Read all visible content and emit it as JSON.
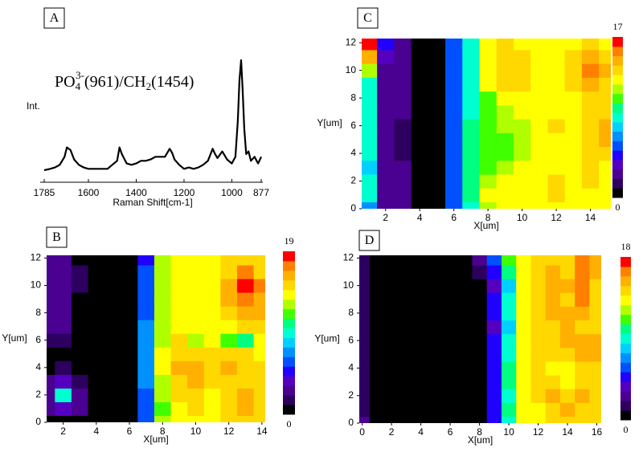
{
  "colormap": [
    "#000000",
    "#2d0060",
    "#4a0090",
    "#5500c0",
    "#2000ff",
    "#0050ff",
    "#0090ff",
    "#00d0ff",
    "#00ffd0",
    "#00ff80",
    "#40ff00",
    "#b0ff00",
    "#ffff00",
    "#ffd800",
    "#ffb000",
    "#ff8000",
    "#ff0000"
  ],
  "chart_data": [
    {
      "type": "line",
      "panel": "A",
      "annotation": [
        "PO",
        "4",
        "3-",
        "(961)/CH",
        "2",
        "(1454)"
      ],
      "xlabel": "Raman Shift[cm-1]",
      "ylabel": "Int.",
      "x": [
        1785,
        1760,
        1740,
        1720,
        1700,
        1690,
        1675,
        1660,
        1640,
        1620,
        1600,
        1580,
        1560,
        1540,
        1520,
        1500,
        1480,
        1470,
        1460,
        1440,
        1420,
        1400,
        1380,
        1360,
        1340,
        1320,
        1300,
        1280,
        1260,
        1250,
        1240,
        1220,
        1200,
        1180,
        1160,
        1140,
        1120,
        1100,
        1080,
        1070,
        1060,
        1040,
        1020,
        1000,
        985,
        975,
        968,
        961,
        955,
        948,
        940,
        930,
        920,
        905,
        890,
        877
      ],
      "values": [
        9,
        10,
        11,
        13,
        19,
        26,
        24,
        17,
        13,
        11,
        10,
        10,
        10,
        10,
        10,
        13,
        16,
        26,
        21,
        14,
        13,
        14,
        16,
        16,
        17,
        19,
        19,
        19,
        25,
        22,
        17,
        13,
        10,
        11,
        10,
        11,
        13,
        16,
        25,
        21,
        18,
        23,
        17,
        14,
        19,
        46,
        76,
        91,
        70,
        40,
        21,
        23,
        16,
        19,
        14,
        19
      ],
      "xlim": [
        1785,
        877
      ],
      "xticks": [
        1785,
        1600,
        1400,
        1200,
        1000,
        877
      ],
      "ylim": [
        0,
        100
      ],
      "color": "#000000"
    },
    {
      "type": "heatmap",
      "panel": "B",
      "xlabel": "X[um]",
      "ylabel": "Y[um]",
      "xlim": [
        1,
        14.2
      ],
      "xticks": [
        2,
        4,
        6,
        8,
        10,
        12,
        14
      ],
      "ylim": [
        0,
        12.2
      ],
      "yticks": [
        0,
        2,
        4,
        6,
        8,
        10,
        12
      ],
      "zlim": [
        0,
        19
      ],
      "x": [
        1,
        2,
        3,
        4,
        5,
        6,
        7,
        8,
        9,
        10,
        11,
        12,
        13,
        14
      ],
      "y": [
        0,
        1,
        2,
        3,
        4,
        5,
        6,
        7,
        8,
        9,
        10,
        11,
        12
      ],
      "z": [
        [
          0,
          0,
          0,
          0,
          0,
          0,
          6,
          13,
          14,
          14,
          14,
          15,
          16,
          15
        ],
        [
          2,
          4,
          2,
          0,
          0,
          0,
          6,
          12,
          14,
          15,
          14,
          15,
          17,
          15
        ],
        [
          2,
          9,
          2,
          0,
          0,
          0,
          6,
          13,
          15,
          15,
          14,
          15,
          17,
          16
        ],
        [
          2,
          4,
          1,
          0,
          0,
          0,
          7,
          13,
          16,
          17,
          15,
          16,
          16,
          15
        ],
        [
          0,
          1,
          0,
          0,
          0,
          0,
          7,
          14,
          17,
          17,
          16,
          17,
          16,
          15
        ],
        [
          0,
          0,
          0,
          0,
          0,
          0,
          7,
          14,
          16,
          16,
          15,
          16,
          15,
          14
        ],
        [
          1,
          1,
          0,
          0,
          0,
          0,
          7,
          13,
          16,
          13,
          14,
          12,
          11,
          14
        ],
        [
          2,
          2,
          0,
          0,
          0,
          0,
          7,
          13,
          14,
          14,
          14,
          14,
          16,
          16
        ],
        [
          2,
          2,
          0,
          0,
          0,
          0,
          6,
          13,
          14,
          14,
          14,
          15,
          17,
          17
        ],
        [
          2,
          2,
          0,
          0,
          0,
          0,
          6,
          13,
          14,
          14,
          14,
          17,
          18,
          17
        ],
        [
          2,
          2,
          1,
          0,
          0,
          0,
          6,
          13,
          14,
          14,
          14,
          17,
          19,
          18
        ],
        [
          2,
          2,
          1,
          0,
          0,
          0,
          6,
          13,
          14,
          14,
          14,
          16,
          18,
          16
        ],
        [
          2,
          2,
          0,
          0,
          0,
          0,
          5,
          13,
          14,
          14,
          14,
          15,
          16,
          15
        ]
      ]
    },
    {
      "type": "heatmap",
      "panel": "C",
      "xlabel": "X[um]",
      "ylabel": "Y[um]",
      "xlim": [
        0.6,
        15.2
      ],
      "xticks": [
        2,
        4,
        6,
        8,
        10,
        12,
        14
      ],
      "ylim": [
        0,
        12.3
      ],
      "yticks": [
        0,
        2,
        4,
        6,
        8,
        10,
        12
      ],
      "zlim": [
        0,
        17
      ],
      "x": [
        1,
        2,
        3,
        4,
        5,
        6,
        7,
        8,
        9,
        10,
        11,
        12,
        13,
        14,
        15
      ],
      "y": [
        0,
        1,
        2,
        3,
        4,
        5,
        6,
        7,
        8,
        9,
        10,
        11,
        12
      ],
      "z": [
        [
          6,
          2,
          2,
          0,
          0,
          5,
          9,
          12,
          13,
          13,
          13,
          13,
          13,
          13,
          13
        ],
        [
          8,
          2,
          2,
          0,
          0,
          5,
          10,
          13,
          13,
          13,
          13,
          14,
          13,
          13,
          13
        ],
        [
          8,
          2,
          2,
          0,
          0,
          5,
          10,
          12,
          13,
          13,
          13,
          14,
          13,
          14,
          13
        ],
        [
          7,
          2,
          2,
          0,
          0,
          5,
          10,
          11,
          12,
          13,
          13,
          13,
          13,
          14,
          13
        ],
        [
          8,
          2,
          1,
          0,
          0,
          5,
          10,
          11,
          11,
          12,
          13,
          13,
          13,
          14,
          14
        ],
        [
          9,
          2,
          1,
          0,
          0,
          5,
          10,
          11,
          11,
          12,
          13,
          13,
          13,
          14,
          15
        ],
        [
          8,
          2,
          1,
          0,
          0,
          5,
          10,
          11,
          12,
          12,
          13,
          14,
          13,
          14,
          15
        ],
        [
          9,
          2,
          2,
          0,
          0,
          5,
          9,
          11,
          12,
          13,
          13,
          13,
          13,
          14,
          14
        ],
        [
          8,
          2,
          2,
          0,
          0,
          5,
          9,
          11,
          13,
          13,
          13,
          13,
          13,
          14,
          14
        ],
        [
          9,
          2,
          2,
          0,
          0,
          5,
          9,
          13,
          14,
          14,
          13,
          13,
          14,
          15,
          14
        ],
        [
          12,
          2,
          2,
          0,
          0,
          5,
          9,
          13,
          14,
          14,
          13,
          13,
          14,
          16,
          15
        ],
        [
          15,
          3,
          2,
          0,
          0,
          5,
          9,
          13,
          14,
          14,
          13,
          13,
          14,
          15,
          14
        ],
        [
          17,
          4,
          2,
          0,
          0,
          5,
          9,
          13,
          14,
          13,
          13,
          13,
          13,
          14,
          13
        ]
      ]
    },
    {
      "type": "heatmap",
      "panel": "D",
      "xlabel": "X[um]",
      "ylabel": "Y[um]",
      "xlim": [
        -0.2,
        16.3
      ],
      "xticks": [
        0,
        2,
        4,
        6,
        8,
        10,
        12,
        14,
        16
      ],
      "ylim": [
        0,
        12.2
      ],
      "yticks": [
        0,
        2,
        4,
        6,
        8,
        10,
        12
      ],
      "zlim": [
        0,
        18
      ],
      "x": [
        0,
        1,
        2,
        3,
        4,
        5,
        6,
        7,
        8,
        9,
        10,
        11,
        12,
        13,
        14,
        15,
        16
      ],
      "y": [
        0,
        1,
        2,
        3,
        4,
        5,
        6,
        7,
        8,
        9,
        10,
        11,
        12
      ],
      "z": [
        [
          2,
          0,
          0,
          0,
          0,
          0,
          0,
          0,
          0,
          4,
          9,
          13,
          14,
          15,
          15,
          15,
          15
        ],
        [
          1,
          0,
          0,
          0,
          0,
          0,
          0,
          0,
          0,
          5,
          10,
          13,
          14,
          15,
          16,
          15,
          15
        ],
        [
          1,
          0,
          0,
          0,
          0,
          0,
          0,
          0,
          0,
          4,
          9,
          14,
          15,
          16,
          15,
          16,
          15
        ],
        [
          1,
          0,
          0,
          0,
          0,
          0,
          0,
          0,
          0,
          5,
          10,
          14,
          15,
          15,
          14,
          15,
          15
        ],
        [
          1,
          0,
          0,
          0,
          0,
          0,
          0,
          0,
          0,
          5,
          10,
          14,
          15,
          14,
          13,
          15,
          15
        ],
        [
          1,
          0,
          0,
          0,
          0,
          0,
          0,
          0,
          0,
          4,
          9,
          14,
          15,
          15,
          15,
          16,
          16
        ],
        [
          1,
          0,
          0,
          0,
          0,
          0,
          0,
          0,
          0,
          4,
          9,
          13,
          15,
          15,
          16,
          16,
          16
        ],
        [
          1,
          0,
          0,
          0,
          0,
          0,
          0,
          0,
          0,
          3,
          8,
          13,
          15,
          15,
          16,
          15,
          15
        ],
        [
          1,
          0,
          0,
          0,
          0,
          0,
          0,
          0,
          0,
          4,
          9,
          13,
          15,
          16,
          16,
          16,
          15
        ],
        [
          1,
          0,
          0,
          0,
          0,
          0,
          0,
          0,
          0,
          4,
          9,
          13,
          15,
          16,
          15,
          17,
          15
        ],
        [
          1,
          0,
          0,
          0,
          0,
          0,
          0,
          0,
          0,
          3,
          8,
          13,
          15,
          16,
          16,
          17,
          15
        ],
        [
          1,
          0,
          0,
          0,
          0,
          0,
          0,
          0,
          1,
          5,
          10,
          13,
          15,
          16,
          15,
          17,
          16
        ],
        [
          1,
          0,
          0,
          0,
          0,
          0,
          0,
          0,
          2,
          6,
          11,
          13,
          15,
          15,
          15,
          17,
          16
        ]
      ]
    }
  ]
}
